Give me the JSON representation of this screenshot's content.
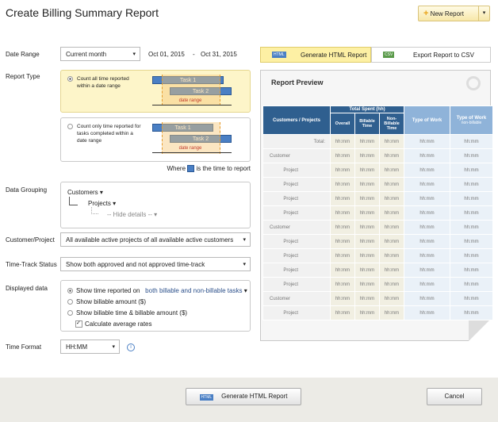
{
  "header": {
    "title": "Create Billing Summary Report",
    "new_report": "New Report"
  },
  "form": {
    "date_range": {
      "label": "Date Range",
      "value": "Current month",
      "from": "Oct 01, 2015",
      "separator": "-",
      "to": "Oct 31, 2015"
    },
    "report_type": {
      "label": "Report Type",
      "options": [
        {
          "text": "Count all time reported within a date range",
          "task1": "Task 1",
          "task2": "Task 2",
          "range": "date range"
        },
        {
          "text": "Count only time reported for tasks completed within a date range",
          "task1": "Task 1",
          "task2": "Task 2",
          "range": "date range"
        }
      ],
      "legend_before": "Where",
      "legend_after": "is the time to report"
    },
    "data_grouping": {
      "label": "Data Grouping",
      "level1": "Customers",
      "level2": "Projects",
      "level3": "-- Hide details --"
    },
    "customer_project": {
      "label": "Customer/Project",
      "value": "All available active projects of all available active customers"
    },
    "time_track_status": {
      "label": "Time-Track Status",
      "value": "Show both approved and not approved time-track"
    },
    "displayed_data": {
      "label": "Displayed data",
      "option1": "Show time reported on",
      "option1_select": "both billable and non-billable tasks",
      "option2": "Show billable amount ($)",
      "option3": "Show billable time & billable amount ($)",
      "checkbox": "Calculate average rates"
    },
    "time_format": {
      "label": "Time Format",
      "value": "HH:MM"
    }
  },
  "tabs": {
    "html_icon": "HTML",
    "html": "Generate HTML Report",
    "csv_icon": "CSV",
    "csv": "Export Report to CSV"
  },
  "preview": {
    "title": "Report Preview",
    "headers": {
      "name": "Customers / Projects",
      "group": "Total Spent (hh)",
      "overall": "Overall",
      "billable": "Billable Time",
      "non_billable": "Non-Billable Time",
      "type_of_work": "Type of Work",
      "type_of_work_nb": "Type of Work",
      "type_of_work_nb_sub": "non-billable"
    },
    "rows": [
      [
        "Total:",
        "hh:mm",
        "hh:mm",
        "hh:mm",
        "hh:mm",
        "hh:mm"
      ],
      [
        "Customer",
        "hh:mm",
        "hh:mm",
        "hh:mm",
        "hh:mm",
        "hh:mm"
      ],
      [
        "Project",
        "hh:mm",
        "hh:mm",
        "hh:mm",
        "hh:mm",
        "hh:mm"
      ],
      [
        "Project",
        "hh:mm",
        "hh:mm",
        "hh:mm",
        "hh:mm",
        "hh:mm"
      ],
      [
        "Project",
        "hh:mm",
        "hh:mm",
        "hh:mm",
        "hh:mm",
        "hh:mm"
      ],
      [
        "Project",
        "hh:mm",
        "hh:mm",
        "hh:mm",
        "hh:mm",
        "hh:mm"
      ],
      [
        "Customer",
        "hh:mm",
        "hh:mm",
        "hh:mm",
        "hh:mm",
        "hh:mm"
      ],
      [
        "Project",
        "hh:mm",
        "hh:mm",
        "hh:mm",
        "hh:mm",
        "hh:mm"
      ],
      [
        "Project",
        "hh:mm",
        "hh:mm",
        "hh:mm",
        "hh:mm",
        "hh:mm"
      ],
      [
        "Project",
        "hh:mm",
        "hh:mm",
        "hh:mm",
        "hh:mm",
        "hh:mm"
      ],
      [
        "Project",
        "hh:mm",
        "hh:mm",
        "hh:mm",
        "hh:mm",
        "hh:mm"
      ],
      [
        "Customer",
        "hh:mm",
        "hh:mm",
        "hh:mm",
        "hh:mm",
        "hh:mm"
      ],
      [
        "Project",
        "hh:mm",
        "hh:mm",
        "hh:mm",
        "hh:mm",
        "hh:mm"
      ]
    ]
  },
  "footer": {
    "generate": "Generate HTML Report",
    "cancel": "Cancel"
  }
}
